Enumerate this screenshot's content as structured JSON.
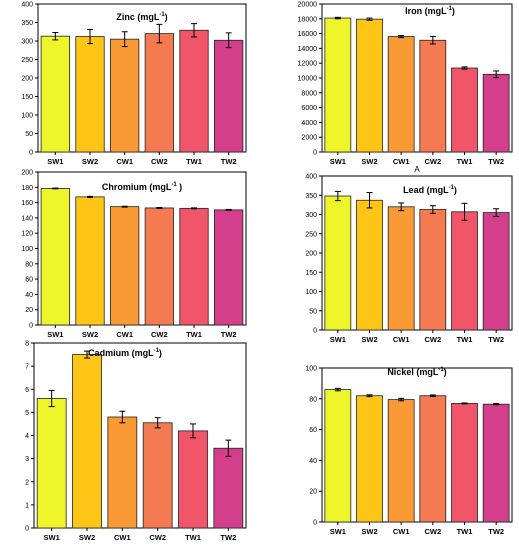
{
  "colors": [
    "#eff52b",
    "#fdc617",
    "#f99a34",
    "#f47a52",
    "#f0556a",
    "#d43f8c"
  ],
  "chart_data": [
    {
      "type": "bar",
      "title": "Zinc (mgL",
      "title_sup": "-1",
      "title_suffix": ")",
      "categories": [
        "SW1",
        "SW2",
        "CW1",
        "CW2",
        "TW1",
        "TW2"
      ],
      "values": [
        313,
        312,
        305,
        320,
        329,
        302
      ],
      "errors": [
        10,
        19,
        20,
        25,
        18,
        20
      ],
      "ylim": [
        0,
        400
      ],
      "yticks": [
        "0",
        "50",
        "100",
        "150",
        "200",
        "250",
        "300",
        "350",
        "400"
      ],
      "xlabel": ""
    },
    {
      "type": "bar",
      "title": "Iron (mgL",
      "title_sup": "-1",
      "title_suffix": ")",
      "categories": [
        "SW1",
        "SW2",
        "CW1",
        "CW2",
        "TW1",
        "TW2"
      ],
      "values": [
        18100,
        17950,
        15600,
        15100,
        11350,
        10500
      ],
      "errors": [
        100,
        150,
        150,
        500,
        150,
        450
      ],
      "ylim": [
        0,
        20000
      ],
      "yticks": [
        "0",
        "2000",
        "4000",
        "6000",
        "8000",
        "10000",
        "12000",
        "14000",
        "16000",
        "18000",
        "20000"
      ],
      "xlabel": "A"
    },
    {
      "type": "bar",
      "title": "Chromium (mgL",
      "title_sup": "-1",
      "title_suffix": " )",
      "categories": [
        "SW1",
        "SW2",
        "CW1",
        "CW2",
        "TW1",
        "TW2"
      ],
      "values": [
        178.5,
        167.5,
        154.7,
        153.0,
        152.5,
        150.5
      ],
      "errors": [
        0.5,
        0.7,
        0.6,
        0.6,
        0.6,
        0.6
      ],
      "ylim": [
        0,
        200
      ],
      "yticks": [
        "0",
        "20",
        "40",
        "60",
        "80",
        "100",
        "120",
        "140",
        "160",
        "180",
        "200"
      ],
      "xlabel": ""
    },
    {
      "type": "bar",
      "title": "Lead (mgL",
      "title_sup": "-1",
      "title_suffix": ")",
      "categories": [
        "SW1",
        "SW2",
        "CW1",
        "CW2",
        "TW1",
        "TW2"
      ],
      "values": [
        348,
        337,
        320,
        313,
        307,
        305
      ],
      "errors": [
        12,
        20,
        10,
        10,
        22,
        10
      ],
      "ylim": [
        0,
        400
      ],
      "yticks": [
        "0",
        "50",
        "100",
        "150",
        "200",
        "250",
        "300",
        "350",
        "400"
      ],
      "xlabel": ""
    },
    {
      "type": "bar",
      "title": "Cadmium (mgL",
      "title_sup": "-1",
      "title_suffix": ")",
      "categories": [
        "SW1",
        "SW2",
        "CW1",
        "CW2",
        "TW1",
        "TW2"
      ],
      "values": [
        5.6,
        7.5,
        4.8,
        4.55,
        4.2,
        3.45
      ],
      "errors": [
        0.35,
        0.15,
        0.25,
        0.22,
        0.3,
        0.35
      ],
      "ylim": [
        0,
        8
      ],
      "yticks": [
        "0",
        "1",
        "2",
        "3",
        "4",
        "5",
        "6",
        "7",
        "8"
      ],
      "xlabel": ""
    },
    {
      "type": "bar",
      "title": "Nickel (mgL",
      "title_sup": "-1",
      "title_suffix": ")",
      "categories": [
        "SW1",
        "SW2",
        "CW1",
        "CW2",
        "TW1",
        "TW2"
      ],
      "values": [
        86.0,
        82.0,
        79.5,
        82.0,
        77.0,
        76.5
      ],
      "errors": [
        0.8,
        0.6,
        0.8,
        0.5,
        0.3,
        0.4
      ],
      "ylim": [
        0,
        100
      ],
      "yticks": [
        "0",
        "20",
        "40",
        "60",
        "80",
        "100"
      ],
      "xlabel": ""
    }
  ]
}
